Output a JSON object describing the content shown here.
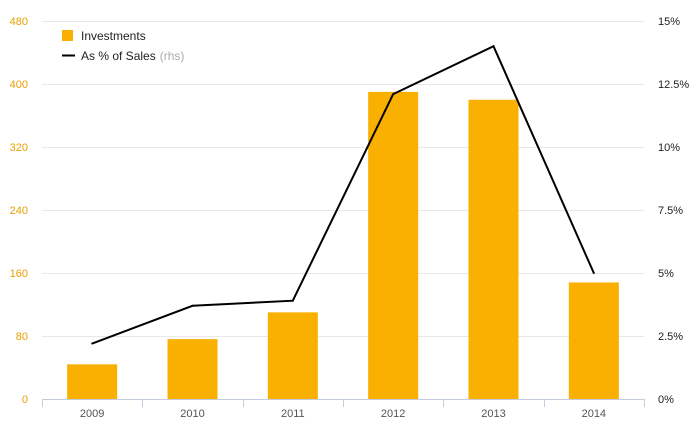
{
  "chart_data": {
    "type": "bar",
    "categories": [
      "2009",
      "2010",
      "2011",
      "2012",
      "2013",
      "2014"
    ],
    "series": [
      {
        "name": "Investments",
        "type": "bar",
        "axis": "left",
        "values": [
          44,
          76,
          110,
          390,
          380,
          148
        ]
      },
      {
        "name": "As % of Sales",
        "type": "line",
        "axis": "right",
        "values": [
          2.2,
          3.7,
          3.9,
          12.1,
          14.0,
          5.0
        ]
      }
    ],
    "legend": {
      "placement": "top-left",
      "items": [
        {
          "label": "Investments",
          "note": ""
        },
        {
          "label": "As % of Sales",
          "note": "(rhs)"
        }
      ]
    },
    "y_left": {
      "ylim": [
        0,
        480
      ],
      "ticks": [
        0,
        80,
        160,
        240,
        320,
        400,
        480
      ],
      "tick_labels": [
        "0",
        "80",
        "160",
        "240",
        "320",
        "400",
        "480"
      ]
    },
    "y_right": {
      "ylim": [
        0,
        15
      ],
      "ticks": [
        0,
        2.5,
        5,
        7.5,
        10,
        12.5,
        15
      ],
      "tick_labels": [
        "0%",
        "2.5%",
        "5%",
        "7.5%",
        "10%",
        "12.5%",
        "15%"
      ]
    },
    "grid": true,
    "colors": {
      "bar": "#f9b000",
      "line": "#000000",
      "left_ticks": "#e6a100",
      "grid": "#e8e8e8",
      "axis": "#c5cbe0"
    },
    "title": "",
    "xlabel": "",
    "ylabel": ""
  }
}
